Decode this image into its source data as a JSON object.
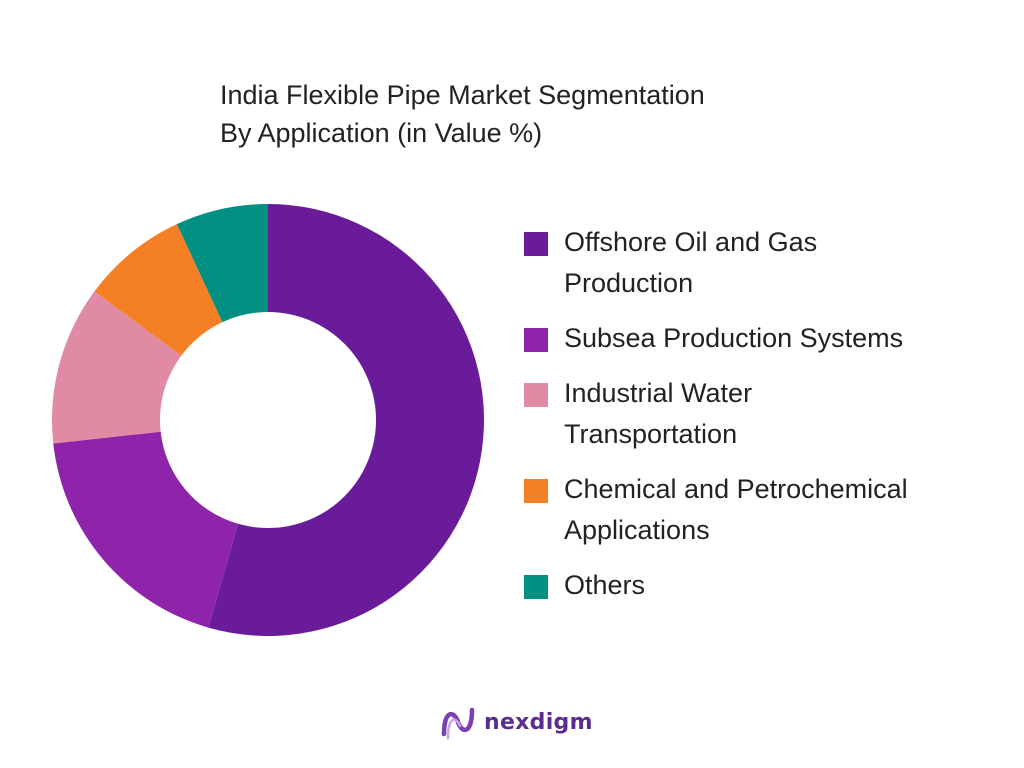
{
  "chart_data": {
    "type": "pie",
    "title_lines": [
      "India Flexible Pipe Market Segmentation",
      "By Application (in Value %)"
    ],
    "donut": true,
    "categories": [
      "Offshore Oil and Gas Production",
      "Subsea Production Systems",
      "Industrial Water Transportation",
      "Chemical and Petrochemical Applications",
      "Others"
    ],
    "values": [
      55,
      19,
      12,
      8,
      7
    ],
    "colors": [
      "#6a1b9a",
      "#8e24aa",
      "#e08aa4",
      "#f57f25",
      "#008f80"
    ],
    "legend_position": "right"
  },
  "legend": [
    {
      "lines": [
        "Offshore Oil and Gas",
        "Production"
      ],
      "color": "#6a1b9a"
    },
    {
      "lines": [
        "Subsea Production Systems"
      ],
      "color": "#8e24aa"
    },
    {
      "lines": [
        "Industrial Water",
        "Transportation"
      ],
      "color": "#e08aa4"
    },
    {
      "lines": [
        "Chemical and Petrochemical",
        "Applications"
      ],
      "color": "#f57f25"
    },
    {
      "lines": [
        "Others"
      ],
      "color": "#008f80"
    }
  ],
  "brand": {
    "name": "nexdigm",
    "icon": "nexdigm-logo-icon",
    "color": "#5b2c8f"
  }
}
